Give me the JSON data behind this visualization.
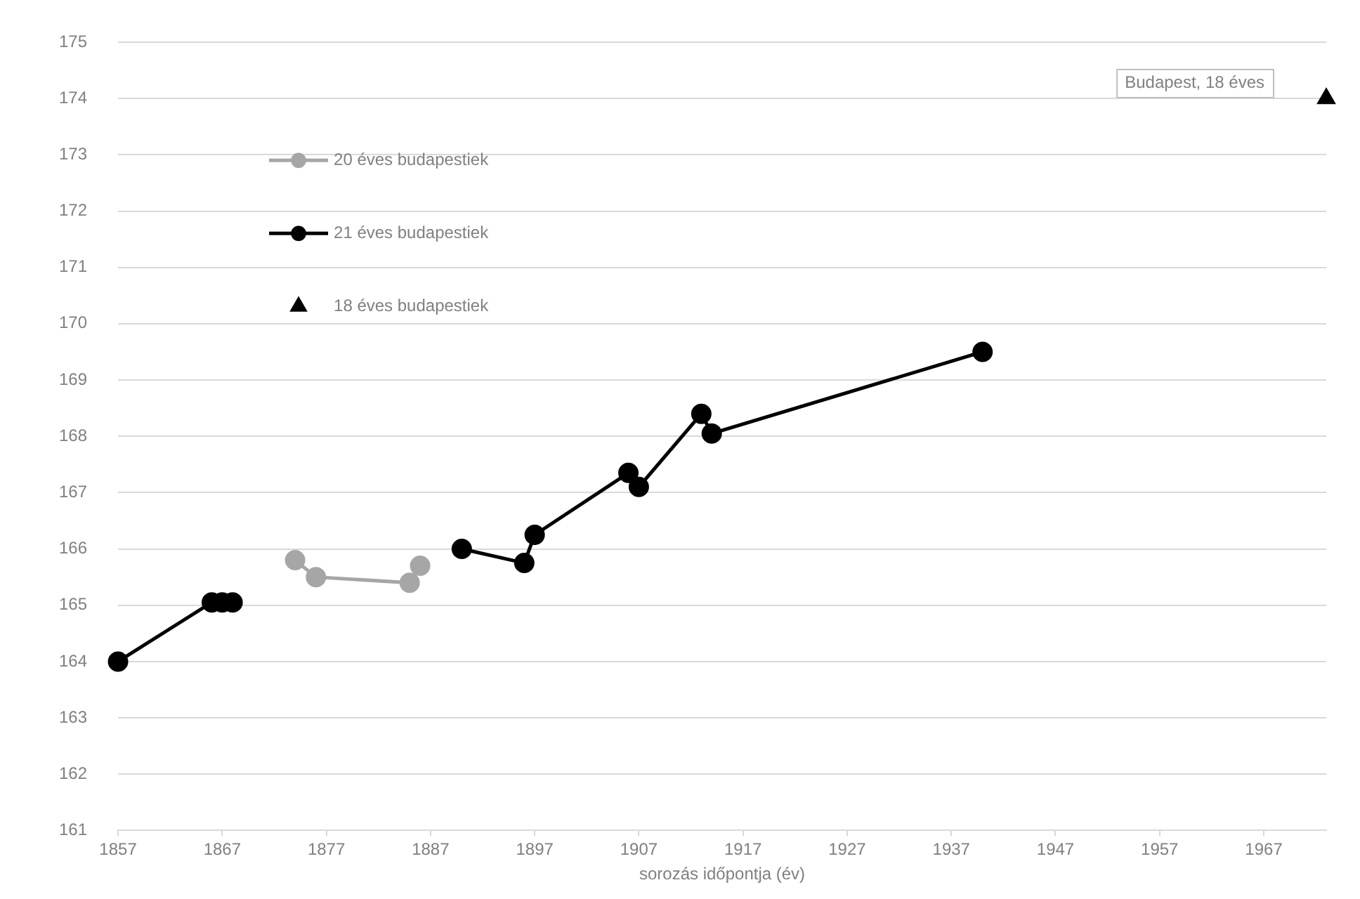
{
  "chart_data": {
    "type": "line",
    "xlabel": "sorozás időpontja (év)",
    "xlim": [
      1857,
      1973
    ],
    "xticks": [
      1857,
      1867,
      1877,
      1887,
      1897,
      1907,
      1917,
      1927,
      1937,
      1947,
      1957,
      1967
    ],
    "ylim": [
      161,
      175
    ],
    "yticks": [
      161,
      162,
      163,
      164,
      165,
      166,
      167,
      168,
      169,
      170,
      171,
      172,
      173,
      174,
      175
    ],
    "grid": "y",
    "legend": "top left",
    "marker": "circle",
    "line_style": "solid",
    "series": [
      {
        "name": "20 éves budapestiek",
        "color": "#a6a6a6",
        "x": [
          1874,
          1876,
          1885,
          1886
        ],
        "values": [
          165.8,
          165.5,
          165.4,
          165.7
        ]
      },
      {
        "name": "21 éves budapestiek",
        "color": "#000000",
        "x": [
          1857,
          1866,
          1867,
          1868,
          1880,
          1890,
          1896,
          1897,
          1906,
          1907,
          1913,
          1914,
          1940
        ],
        "values": [
          164.0,
          165.05,
          165.05,
          165.05,
          null,
          166.0,
          165.75,
          166.25,
          167.35,
          167.1,
          168.4,
          168.05,
          169.5
        ]
      },
      {
        "name": "18 éves budapestiek",
        "type": "scatter",
        "marker": "triangle",
        "color": "#000000",
        "x": [
          1973
        ],
        "values": [
          174.0
        ]
      }
    ],
    "annotations": [
      "Budapest, 18 éves"
    ]
  }
}
